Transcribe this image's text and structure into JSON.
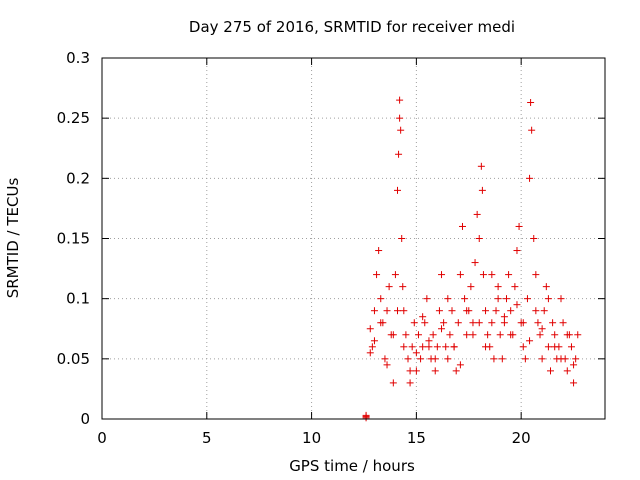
{
  "chart_data": {
    "type": "scatter",
    "title": "Day 275 of 2016, SRMTID for receiver medi",
    "xlabel": "GPS time / hours",
    "ylabel": "SRMTID / TECUs",
    "xlim": [
      0,
      24
    ],
    "ylim": [
      0,
      0.3
    ],
    "x_ticks": [
      0,
      5,
      10,
      15,
      20
    ],
    "x_tick_labels": [
      "0",
      "5",
      "10",
      "15",
      "20"
    ],
    "y_ticks": [
      0,
      0.05,
      0.1,
      0.15,
      0.2,
      0.25,
      0.3
    ],
    "y_tick_labels": [
      "0",
      "0.05",
      "0.1",
      "0.15",
      "0.2",
      "0.25",
      "0.3"
    ],
    "grid": true,
    "marker": "+",
    "series": [
      {
        "name": "SRMTID",
        "color": "#e00000",
        "x": [
          12.6,
          12.6,
          12.6,
          12.8,
          12.9,
          13.0,
          13.1,
          13.2,
          13.3,
          13.4,
          13.5,
          13.6,
          13.7,
          13.8,
          13.9,
          14.0,
          14.1,
          14.15,
          14.2,
          14.2,
          14.25,
          14.3,
          14.35,
          14.4,
          14.5,
          14.6,
          14.7,
          14.8,
          14.9,
          15.0,
          15.1,
          15.2,
          15.3,
          15.4,
          15.5,
          15.6,
          15.7,
          15.8,
          15.9,
          16.0,
          16.1,
          16.2,
          16.3,
          16.4,
          16.5,
          16.6,
          16.7,
          16.8,
          16.9,
          17.0,
          17.1,
          17.2,
          17.3,
          17.4,
          17.5,
          17.6,
          17.7,
          17.8,
          17.9,
          18.0,
          18.1,
          18.15,
          18.2,
          18.3,
          18.4,
          18.5,
          18.6,
          18.7,
          18.8,
          18.9,
          19.0,
          19.1,
          19.2,
          19.3,
          19.4,
          19.5,
          19.6,
          19.7,
          19.8,
          19.9,
          20.0,
          20.1,
          20.2,
          20.3,
          20.4,
          20.45,
          20.5,
          20.6,
          20.7,
          20.8,
          20.9,
          21.0,
          21.1,
          21.2,
          21.3,
          21.4,
          21.5,
          21.6,
          21.7,
          21.8,
          21.9,
          22.0,
          22.1,
          22.2,
          22.3,
          22.4,
          22.5,
          22.6,
          22.7,
          12.8,
          13.0,
          13.3,
          13.6,
          13.9,
          14.1,
          14.4,
          14.7,
          15.0,
          15.3,
          15.6,
          15.9,
          16.2,
          16.5,
          16.8,
          17.1,
          17.4,
          17.7,
          18.0,
          18.3,
          18.6,
          18.9,
          19.2,
          19.5,
          19.8,
          20.1,
          20.4,
          20.7,
          21.0,
          21.3,
          21.6,
          21.9,
          22.2,
          22.5
        ],
        "y": [
          0.001,
          0.002,
          0.003,
          0.075,
          0.06,
          0.09,
          0.12,
          0.14,
          0.1,
          0.08,
          0.05,
          0.09,
          0.11,
          0.07,
          0.03,
          0.12,
          0.19,
          0.22,
          0.25,
          0.265,
          0.24,
          0.15,
          0.11,
          0.09,
          0.07,
          0.05,
          0.03,
          0.06,
          0.08,
          0.04,
          0.07,
          0.05,
          0.06,
          0.08,
          0.1,
          0.06,
          0.05,
          0.07,
          0.04,
          0.06,
          0.09,
          0.12,
          0.08,
          0.06,
          0.05,
          0.07,
          0.09,
          0.06,
          0.04,
          0.08,
          0.12,
          0.16,
          0.1,
          0.07,
          0.09,
          0.11,
          0.08,
          0.13,
          0.17,
          0.15,
          0.21,
          0.19,
          0.12,
          0.09,
          0.07,
          0.06,
          0.08,
          0.05,
          0.09,
          0.11,
          0.07,
          0.05,
          0.08,
          0.1,
          0.12,
          0.09,
          0.07,
          0.11,
          0.14,
          0.16,
          0.08,
          0.06,
          0.05,
          0.1,
          0.2,
          0.263,
          0.24,
          0.15,
          0.12,
          0.08,
          0.07,
          0.05,
          0.09,
          0.11,
          0.06,
          0.04,
          0.08,
          0.07,
          0.05,
          0.06,
          0.1,
          0.08,
          0.05,
          0.04,
          0.07,
          0.06,
          0.03,
          0.05,
          0.07,
          0.055,
          0.065,
          0.08,
          0.045,
          0.07,
          0.09,
          0.06,
          0.04,
          0.055,
          0.085,
          0.065,
          0.05,
          0.075,
          0.1,
          0.06,
          0.045,
          0.09,
          0.07,
          0.08,
          0.06,
          0.12,
          0.1,
          0.085,
          0.07,
          0.095,
          0.08,
          0.065,
          0.09,
          0.075,
          0.1,
          0.06,
          0.05,
          0.07,
          0.045
        ]
      }
    ]
  }
}
